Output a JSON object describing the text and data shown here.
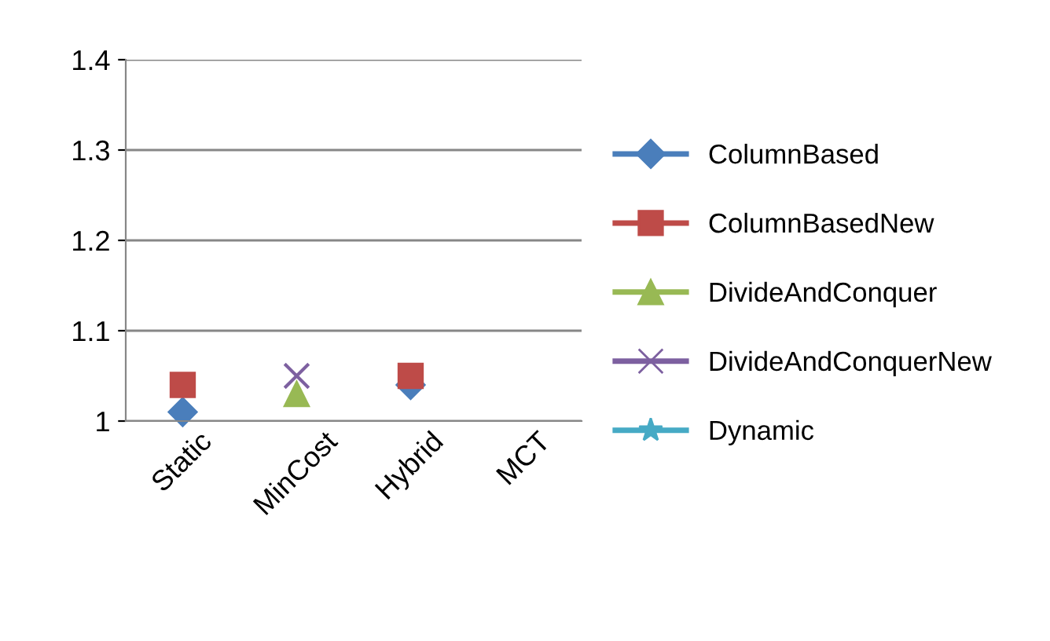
{
  "chart_data": {
    "type": "scatter",
    "categories": [
      "Static",
      "MinCost",
      "Hybrid",
      "MCT"
    ],
    "series": [
      {
        "name": "ColumnBased",
        "color": "#4a7ebb",
        "marker": "diamond",
        "values": [
          1.01,
          null,
          1.04,
          null
        ]
      },
      {
        "name": "ColumnBasedNew",
        "color": "#be4b48",
        "marker": "square",
        "values": [
          1.04,
          null,
          1.05,
          null
        ]
      },
      {
        "name": "DivideAndConquer",
        "color": "#98b954",
        "marker": "triangle",
        "values": [
          null,
          1.03,
          null,
          null
        ]
      },
      {
        "name": "DivideAndConquerNew",
        "color": "#7d60a0",
        "marker": "cross",
        "values": [
          null,
          1.05,
          null,
          null
        ]
      },
      {
        "name": "Dynamic",
        "color": "#46aac5",
        "marker": "star",
        "values": [
          null,
          null,
          null,
          null
        ]
      }
    ],
    "ylim": [
      1,
      1.4
    ],
    "yticks": [
      1,
      1.1,
      1.2,
      1.3,
      1.4
    ],
    "grid": "y",
    "legend": "right",
    "line_style": "solid"
  }
}
